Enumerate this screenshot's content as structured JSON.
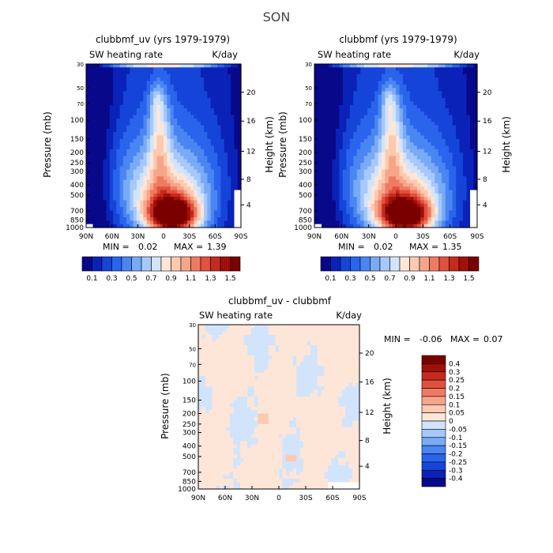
{
  "page": {
    "title": "SON"
  },
  "palettes": {
    "main": [
      "#08088a",
      "#0a22b8",
      "#1545d8",
      "#2a64ec",
      "#4a86f2",
      "#78aaf6",
      "#a6c8fa",
      "#d2e4fc",
      "#fde6d8",
      "#fccab0",
      "#f7a58a",
      "#ef7a62",
      "#e2503e",
      "#c62a1e",
      "#a01008",
      "#7a0000"
    ],
    "diff": [
      "#08088a",
      "#0a22b8",
      "#1545d8",
      "#2a64ec",
      "#4a86f2",
      "#78aaf6",
      "#a6c8fa",
      "#d2e4fc",
      "#fde6d8",
      "#fccab0",
      "#f7a58a",
      "#ef7a62",
      "#e2503e",
      "#c62a1e",
      "#a01008",
      "#7a0000"
    ]
  },
  "chart_data": [
    {
      "type": "heatmap",
      "title": "clubbmf_uv (yrs 1979-1979)",
      "left_label": "SW heating rate",
      "right_label": "K/day",
      "ylabel": "Pressure (mb)",
      "y2label": "Height (km)",
      "x_ticks": [
        "90N",
        "60N",
        "30N",
        "0",
        "30S",
        "60S",
        "90S"
      ],
      "y_ticks": [
        "30",
        "50",
        "70",
        "100",
        "150",
        "200",
        "250",
        "300",
        "400",
        "500",
        "700",
        "850",
        "1000"
      ],
      "y2_ticks": [
        "20",
        "16",
        "12",
        "8",
        "4"
      ],
      "min_label": "MIN =",
      "min_value": "0.02",
      "max_label": "MAX =",
      "max_value": "1.39",
      "colorbar_levels": [
        "0.1",
        "0.3",
        "0.5",
        "0.7",
        "0.9",
        "1.1",
        "1.3",
        "1.5"
      ]
    },
    {
      "type": "heatmap",
      "title": "clubbmf (yrs 1979-1979)",
      "left_label": "SW heating rate",
      "right_label": "K/day",
      "ylabel": "Pressure (mb)",
      "y2label": "Height (km)",
      "x_ticks": [
        "90N",
        "60N",
        "30N",
        "0",
        "30S",
        "60S",
        "90S"
      ],
      "y_ticks": [
        "30",
        "50",
        "70",
        "100",
        "150",
        "200",
        "250",
        "300",
        "400",
        "500",
        "700",
        "850",
        "1000"
      ],
      "y2_ticks": [
        "20",
        "16",
        "12",
        "8",
        "4"
      ],
      "min_label": "MIN =",
      "min_value": "0.02",
      "max_label": "MAX =",
      "max_value": "1.35",
      "colorbar_levels": [
        "0.1",
        "0.3",
        "0.5",
        "0.7",
        "0.9",
        "1.1",
        "1.3",
        "1.5"
      ]
    },
    {
      "type": "heatmap",
      "title": "clubbmf_uv - clubbmf",
      "left_label": "SW heating rate",
      "right_label": "K/day",
      "ylabel": "Pressure (mb)",
      "y2label": "Height (km)",
      "x_ticks": [
        "90N",
        "60N",
        "30N",
        "0",
        "30S",
        "60S",
        "90S"
      ],
      "y_ticks": [
        "30",
        "50",
        "70",
        "100",
        "150",
        "200",
        "250",
        "300",
        "400",
        "500",
        "700",
        "850",
        "1000"
      ],
      "y2_ticks": [
        "20",
        "16",
        "12",
        "8",
        "4"
      ],
      "min_label": "MIN =",
      "min_value": "-0.06",
      "max_label": "MAX =",
      "max_value": "0.07",
      "colorbar_levels": [
        "0.4",
        "0.3",
        "0.25",
        "0.2",
        "0.15",
        "0.1",
        "0.05",
        "0",
        "-0.05",
        "-0.1",
        "-0.15",
        "-0.2",
        "-0.25",
        "-0.3",
        "-0.4"
      ]
    }
  ]
}
